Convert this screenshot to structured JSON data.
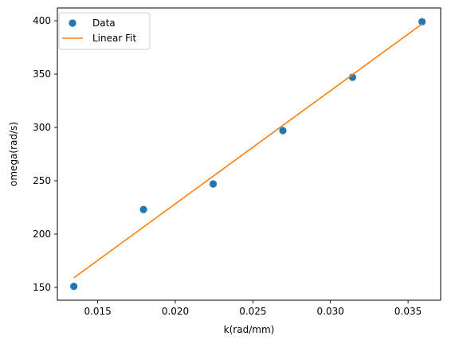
{
  "chart_data": {
    "type": "scatter",
    "title": "",
    "xlabel": "k(rad/mm)",
    "ylabel": "omega(rad/s)",
    "xlim": [
      0.0124,
      0.0371
    ],
    "ylim": [
      138,
      412
    ],
    "xticks": [
      0.015,
      0.02,
      0.025,
      0.03,
      0.035
    ],
    "xtick_labels": [
      "0.015",
      "0.020",
      "0.025",
      "0.030",
      "0.035"
    ],
    "yticks": [
      150,
      200,
      250,
      300,
      350,
      400
    ],
    "ytick_labels": [
      "150",
      "200",
      "250",
      "300",
      "350",
      "400"
    ],
    "grid": false,
    "legend_position": "upper-left",
    "series": [
      {
        "name": "Data",
        "kind": "scatter",
        "color": "#1f77b4",
        "x": [
          0.01346,
          0.01795,
          0.02244,
          0.02693,
          0.03142,
          0.0359
        ],
        "y": [
          151,
          223,
          247,
          297,
          347,
          399
        ]
      },
      {
        "name": "Linear Fit",
        "kind": "line",
        "color": "#ff7f0e",
        "x": [
          0.01346,
          0.0359
        ],
        "y": [
          159,
          397
        ]
      }
    ]
  }
}
